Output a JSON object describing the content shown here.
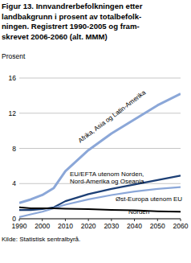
{
  "chart_data": {
    "type": "line",
    "title": [
      "Figur 13. Innvandrerbefolkningen etter",
      "landbakgrunn i prosent av totalbefolk-",
      "ningen. Registrert 1990-2005 og fram-",
      "skrevet 2006-2060 (alt. MMM)"
    ],
    "y_label": "Prosent",
    "source": "Kilde: Statistisk sentralbyrå.",
    "x": [
      1990,
      1995,
      2000,
      2005,
      2010,
      2020,
      2030,
      2040,
      2050,
      2060
    ],
    "xlim": [
      1990,
      2060
    ],
    "xticks": [
      1990,
      2000,
      2010,
      2020,
      2030,
      2040,
      2050,
      2060
    ],
    "ylim": [
      0,
      16
    ],
    "yticks": [
      0,
      4,
      8,
      12,
      16
    ],
    "grid": true,
    "series": [
      {
        "name": "Afrika, Asia og Latin-Amerika",
        "color": "#8ba7d8",
        "values": [
          1.8,
          2.2,
          2.7,
          3.5,
          5.4,
          7.8,
          9.7,
          11.3,
          12.9,
          14.2
        ]
      },
      {
        "name": "EU/EFTA utenom Norden, Nord-Amerika og Oseania",
        "color": "#1c3f75",
        "values": [
          1.0,
          1.0,
          1.1,
          1.3,
          2.0,
          2.8,
          3.4,
          3.9,
          4.4,
          4.9
        ]
      },
      {
        "name": "Øst-Europa utenom EU",
        "color": "#8ba7d8",
        "values": [
          0.2,
          0.5,
          0.8,
          1.2,
          1.6,
          2.2,
          2.7,
          3.1,
          3.4,
          3.6
        ]
      },
      {
        "name": "Norden",
        "color": "#000000",
        "values": [
          1.3,
          1.2,
          1.2,
          1.2,
          1.15,
          1.1,
          1.0,
          0.95,
          0.85,
          0.8
        ]
      }
    ]
  }
}
